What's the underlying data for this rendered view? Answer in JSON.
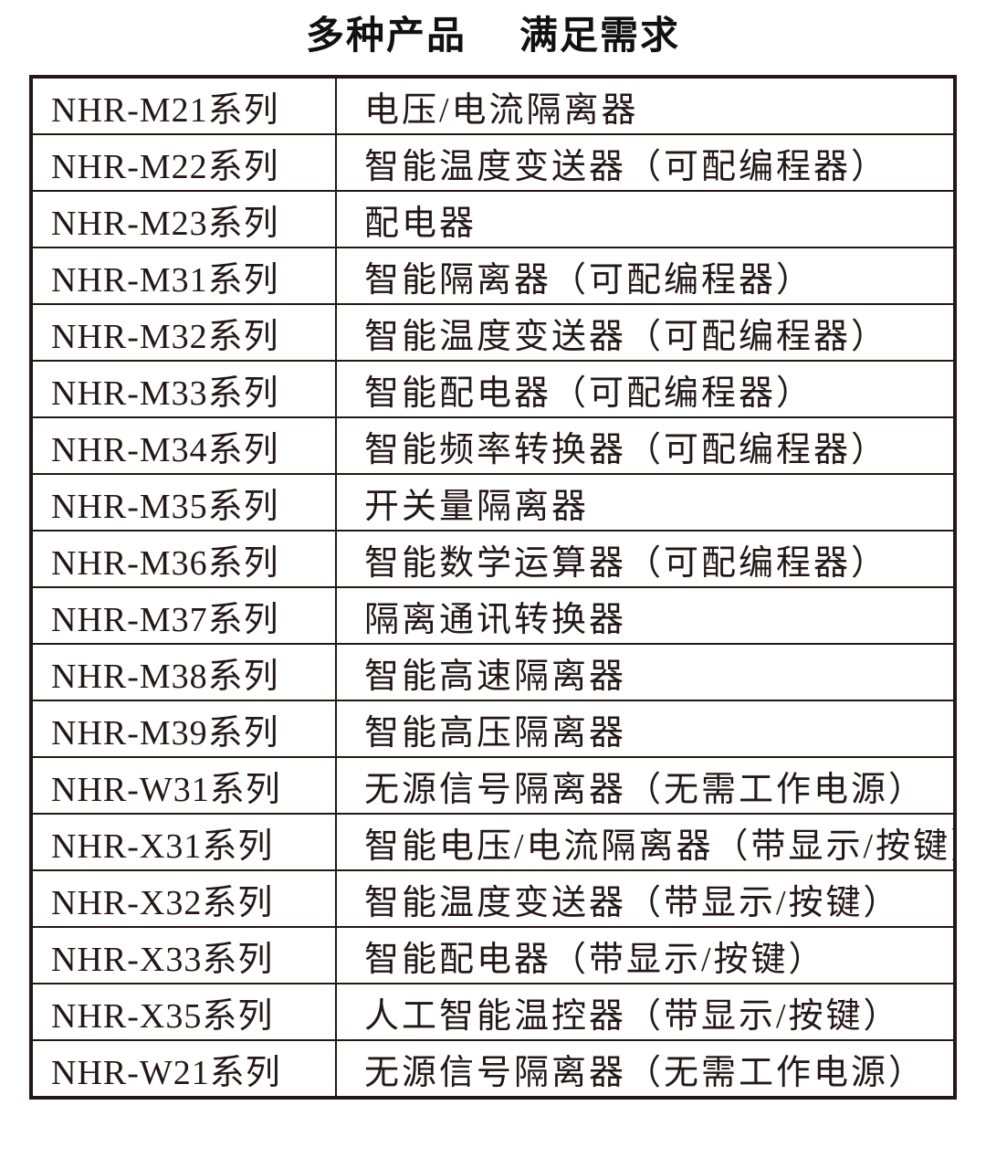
{
  "title": {
    "part1": "多种产品",
    "part2": "满足需求"
  },
  "colors": {
    "title_text": "#111111",
    "table_text": "#231815",
    "table_border": "#231815",
    "background": "#ffffff"
  },
  "table": {
    "rows": [
      {
        "series": "NHR-M21系列",
        "description": "电压/电流隔离器"
      },
      {
        "series": "NHR-M22系列",
        "description": "智能温度变送器（可配编程器）"
      },
      {
        "series": "NHR-M23系列",
        "description": "配电器"
      },
      {
        "series": "NHR-M31系列",
        "description": "智能隔离器（可配编程器）"
      },
      {
        "series": "NHR-M32系列",
        "description": "智能温度变送器（可配编程器）"
      },
      {
        "series": "NHR-M33系列",
        "description": "智能配电器（可配编程器）"
      },
      {
        "series": "NHR-M34系列",
        "description": "智能频率转换器（可配编程器）"
      },
      {
        "series": "NHR-M35系列",
        "description": "开关量隔离器"
      },
      {
        "series": "NHR-M36系列",
        "description": "智能数学运算器（可配编程器）"
      },
      {
        "series": "NHR-M37系列",
        "description": "隔离通讯转换器"
      },
      {
        "series": "NHR-M38系列",
        "description": "智能高速隔离器"
      },
      {
        "series": "NHR-M39系列",
        "description": "智能高压隔离器"
      },
      {
        "series": "NHR-W31系列",
        "description": "无源信号隔离器（无需工作电源）"
      },
      {
        "series": "NHR-X31系列",
        "description": "智能电压/电流隔离器（带显示/按键）"
      },
      {
        "series": "NHR-X32系列",
        "description": "智能温度变送器（带显示/按键）"
      },
      {
        "series": "NHR-X33系列",
        "description": "智能配电器（带显示/按键）"
      },
      {
        "series": "NHR-X35系列",
        "description": "人工智能温控器（带显示/按键）"
      },
      {
        "series": "NHR-W21系列",
        "description": "无源信号隔离器（无需工作电源）"
      }
    ]
  }
}
